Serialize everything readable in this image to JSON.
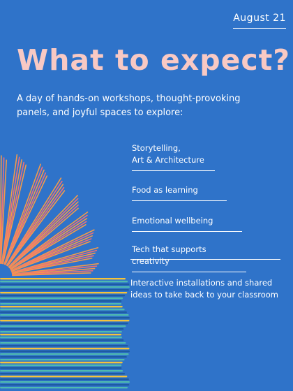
{
  "header": {
    "date": "August 21"
  },
  "title": "What to expect?",
  "intro": "A day of hands-on workshops, thought-provoking panels, and joyful spaces to explore:",
  "items": [
    {
      "lines": [
        "Storytelling,",
        "Art & Architecture"
      ]
    },
    {
      "lines": [
        "Food as learning"
      ]
    },
    {
      "lines": [
        "Emotional wellbeing"
      ]
    },
    {
      "lines": [
        "Tech that supports creativity"
      ]
    },
    {
      "lines": [
        "Interactive installations and shared",
        "ideas to take back to your classroom"
      ]
    }
  ],
  "colors": {
    "background": "#2f73c9",
    "title": "#f8c9c4",
    "text": "#ffffff",
    "page_orange": "#f39a4a",
    "page_pink": "#ee6f7a",
    "book_stripe": "#f5c33b",
    "book_dark": "#1d5ba3"
  },
  "icons": [
    "open-book-illustration"
  ]
}
